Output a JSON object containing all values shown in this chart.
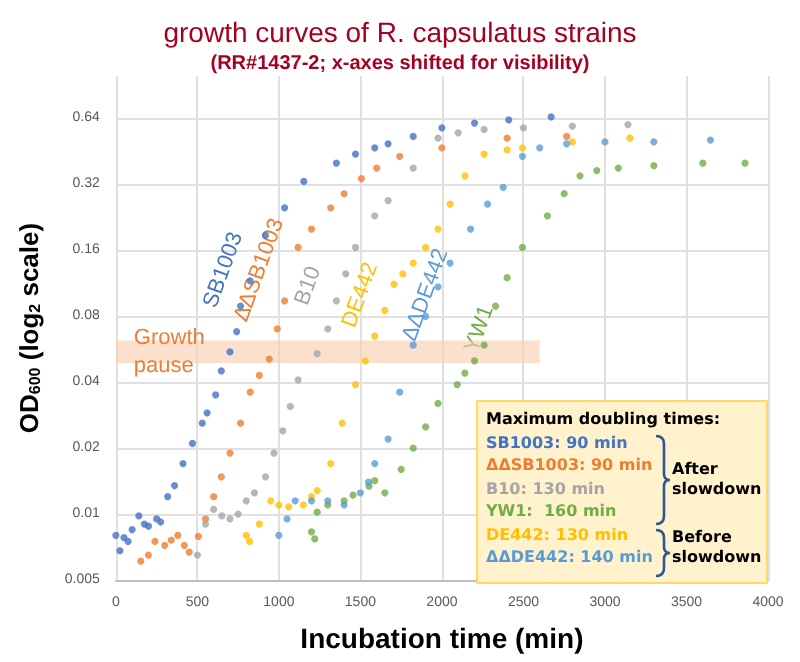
{
  "chart_data": {
    "type": "scatter",
    "title": "growth curves of R. capsulatus strains",
    "subtitle": "(RR#1437-2; x-axes shifted for visibility)",
    "xlabel": "Incubation time (min)",
    "ylabel": "OD$_{600}$ (log$_{2}$ scale)",
    "xlim": [
      0,
      4000
    ],
    "xticks": [
      0,
      500,
      1000,
      1500,
      2000,
      2500,
      3000,
      3500,
      4000
    ],
    "ylim": [
      0.005,
      1
    ],
    "yticks": [
      0.005,
      0.01,
      0.02,
      0.04,
      0.08,
      0.16,
      0.32,
      0.64
    ],
    "log": "y",
    "grid": true,
    "legend": false,
    "marker": "circle",
    "bands": [
      {
        "axis": "y",
        "from": 0.049,
        "to": 0.062,
        "label": "Growth pause",
        "color": "#f8cbad"
      }
    ],
    "annotations": [
      "Maximum doubling times:",
      "SB1003: 90 min",
      "ΔΔSB1003: 90 min",
      "B10: 130 min",
      "YW1:  160 min",
      "DE442: 130 min",
      "ΔΔDE442: 140 min",
      "After slowdown",
      "Before slowdown"
    ],
    "series": [
      {
        "name": "SB1003",
        "color": "#4472c4",
        "x": [
          0,
          25,
          50,
          75,
          100,
          141,
          175,
          200,
          250,
          275,
          318,
          360,
          412,
          470,
          530,
          560,
          612,
          647,
          700,
          741,
          765,
          824,
          918,
          1035,
          1153,
          1353,
          1470,
          1588,
          1670,
          1824,
          2000,
          2200,
          2410,
          2670
        ],
        "values": [
          0.008,
          0.0068,
          0.0078,
          0.0075,
          0.0085,
          0.0098,
          0.009,
          0.0088,
          0.0095,
          0.0092,
          0.012,
          0.0135,
          0.017,
          0.021,
          0.026,
          0.029,
          0.035,
          0.045,
          0.055,
          0.068,
          0.089,
          0.116,
          0.187,
          0.25,
          0.33,
          0.4,
          0.44,
          0.47,
          0.49,
          0.53,
          0.58,
          0.61,
          0.63,
          0.65
        ]
      },
      {
        "name": "ΔΔSB1003",
        "color": "#ed7d31",
        "x": [
          153,
          200,
          240,
          300,
          340,
          380,
          420,
          450,
          506,
          550,
          600,
          647,
          700,
          765,
          824,
          880,
          941,
          990,
          1035,
          1118,
          1200,
          1318,
          1400,
          1506,
          1600,
          1741,
          2000,
          2400,
          2765
        ],
        "values": [
          0.0061,
          0.0065,
          0.0075,
          0.0072,
          0.0076,
          0.008,
          0.0072,
          0.0067,
          0.0079,
          0.0095,
          0.012,
          0.0148,
          0.019,
          0.026,
          0.036,
          0.043,
          0.051,
          0.07,
          0.094,
          0.165,
          0.2,
          0.25,
          0.29,
          0.34,
          0.38,
          0.43,
          0.47,
          0.52,
          0.53
        ]
      },
      {
        "name": "B10",
        "color": "#a5a5a5",
        "x": [
          500,
          550,
          600,
          650,
          700,
          750,
          800,
          850,
          918,
          970,
          1024,
          1070,
          1118,
          1235,
          1300,
          1353,
          1410,
          1470,
          1588,
          1670,
          1824,
          1976,
          2100,
          2259,
          2500,
          2800,
          3141
        ],
        "values": [
          0.0065,
          0.009,
          0.0105,
          0.0098,
          0.0095,
          0.01,
          0.0115,
          0.0125,
          0.0148,
          0.019,
          0.024,
          0.031,
          0.041,
          0.054,
          0.07,
          0.094,
          0.125,
          0.165,
          0.23,
          0.27,
          0.38,
          0.52,
          0.55,
          0.57,
          0.58,
          0.59,
          0.6
        ]
      },
      {
        "name": "YW1",
        "color": "#70ad47",
        "x": [
          1200,
          1220,
          1235,
          1300,
          1400,
          1455,
          1553,
          1588,
          1650,
          1750,
          1824,
          1900,
          1976,
          2094,
          2141,
          2200,
          2259,
          2329,
          2400,
          2494,
          2647,
          2750,
          2847,
          2950,
          3082,
          3300,
          3600,
          3859
        ],
        "values": [
          0.0083,
          0.0077,
          0.0102,
          0.011,
          0.0115,
          0.0122,
          0.0134,
          0.0142,
          0.0125,
          0.016,
          0.02,
          0.025,
          0.032,
          0.039,
          0.044,
          0.05,
          0.059,
          0.089,
          0.12,
          0.165,
          0.23,
          0.29,
          0.35,
          0.37,
          0.38,
          0.39,
          0.4,
          0.4
        ]
      },
      {
        "name": "DE442",
        "color": "#ffc000",
        "x": [
          800,
          820,
          880,
          950,
          1000,
          1060,
          1150,
          1200,
          1235,
          1318,
          1388,
          1470,
          1530,
          1588,
          1650,
          1706,
          1760,
          1824,
          1900,
          1976,
          2050,
          2141,
          2259,
          2400,
          2494,
          2800,
          3153
        ],
        "values": [
          0.008,
          0.0075,
          0.009,
          0.0115,
          0.011,
          0.0108,
          0.011,
          0.012,
          0.0128,
          0.017,
          0.026,
          0.039,
          0.05,
          0.065,
          0.085,
          0.112,
          0.125,
          0.14,
          0.165,
          0.2,
          0.26,
          0.35,
          0.44,
          0.46,
          0.47,
          0.5,
          0.52
        ]
      },
      {
        "name": "ΔΔDE442",
        "color": "#5b9bd5",
        "x": [
          1000,
          1050,
          1100,
          1200,
          1300,
          1400,
          1500,
          1550,
          1588,
          1670,
          1741,
          1824,
          1900,
          1976,
          2050,
          2176,
          2280,
          2376,
          2494,
          2600,
          2765,
          3000,
          3300,
          3647
        ],
        "values": [
          0.008,
          0.0095,
          0.0115,
          0.0115,
          0.0115,
          0.011,
          0.0125,
          0.014,
          0.017,
          0.022,
          0.036,
          0.059,
          0.08,
          0.109,
          0.14,
          0.2,
          0.26,
          0.31,
          0.43,
          0.47,
          0.49,
          0.5,
          0.5,
          0.51
        ]
      }
    ]
  }
}
